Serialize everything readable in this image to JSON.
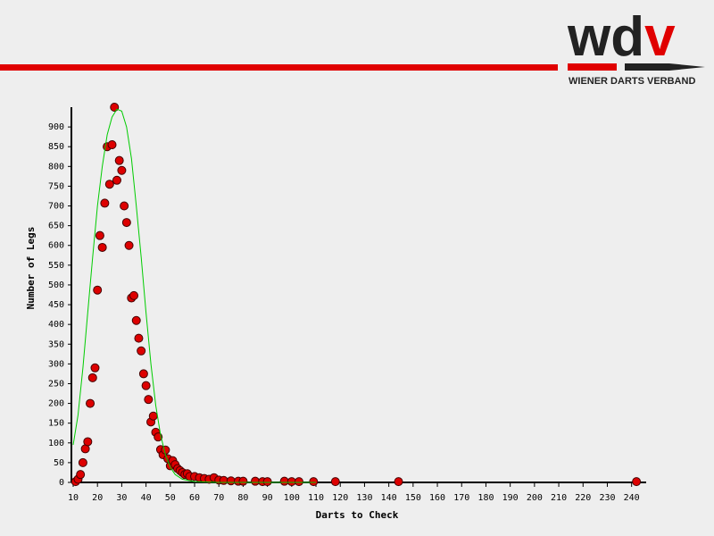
{
  "brand": {
    "logo_dark": "wd",
    "logo_accent": "v",
    "tagline": "WIENER DARTS VERBAND"
  },
  "chart_data": {
    "type": "scatter",
    "x_label": "Darts to Check",
    "y_label": "Number of Legs",
    "xlim": [
      10,
      246
    ],
    "ylim": [
      0,
      950
    ],
    "xticks": [
      10,
      20,
      30,
      40,
      50,
      60,
      70,
      80,
      90,
      100,
      110,
      120,
      130,
      140,
      150,
      160,
      170,
      180,
      190,
      200,
      210,
      220,
      230,
      240
    ],
    "yticks": [
      0,
      50,
      100,
      150,
      200,
      250,
      300,
      350,
      400,
      450,
      500,
      550,
      600,
      650,
      700,
      750,
      800,
      850,
      900
    ],
    "series": [
      {
        "type": "scatter",
        "color": "#dd0000",
        "x": [
          11,
          12,
          13,
          14,
          15,
          16,
          17,
          18,
          19,
          20,
          21,
          22,
          23,
          24,
          25,
          26,
          27,
          28,
          29,
          30,
          31,
          32,
          33,
          34,
          35,
          36,
          37,
          38,
          39,
          40,
          41,
          42,
          43,
          44,
          45,
          46,
          47,
          48,
          49,
          50,
          51,
          52,
          53,
          54,
          55,
          56,
          57,
          58,
          60,
          62,
          64,
          66,
          68,
          70,
          72,
          75,
          78,
          80,
          85,
          88,
          90,
          97,
          100,
          103,
          109,
          118,
          144,
          242
        ],
        "values": [
          2,
          8,
          20,
          50,
          85,
          103,
          200,
          265,
          290,
          487,
          625,
          595,
          707,
          850,
          755,
          855,
          950,
          765,
          815,
          790,
          700,
          658,
          600,
          467,
          473,
          410,
          365,
          333,
          275,
          245,
          210,
          153,
          168,
          127,
          115,
          83,
          70,
          82,
          60,
          42,
          55,
          45,
          35,
          30,
          25,
          20,
          22,
          15,
          15,
          12,
          10,
          8,
          12,
          6,
          5,
          4,
          3,
          3,
          3,
          2,
          2,
          3,
          2,
          2,
          2,
          2,
          2,
          2
        ]
      },
      {
        "type": "line",
        "color": "#00cc00",
        "x": [
          10,
          12,
          14,
          16,
          18,
          20,
          22,
          24,
          26,
          28,
          30,
          32,
          34,
          36,
          38,
          40,
          42,
          44,
          46,
          48,
          50,
          52,
          55,
          60,
          70,
          110
        ],
        "values": [
          95,
          170,
          290,
          430,
          570,
          700,
          800,
          880,
          925,
          945,
          940,
          900,
          820,
          700,
          570,
          430,
          300,
          195,
          120,
          70,
          38,
          20,
          8,
          2,
          0,
          0
        ]
      }
    ]
  }
}
